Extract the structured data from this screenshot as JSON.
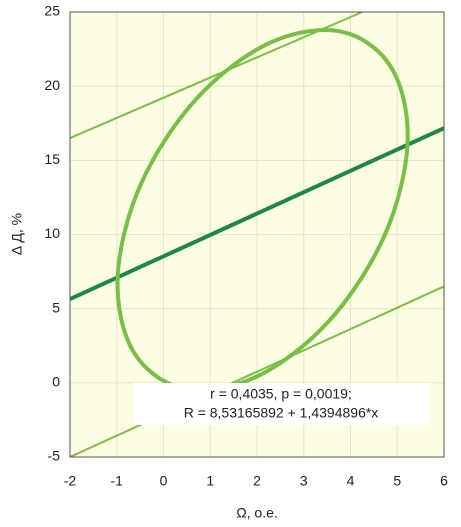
{
  "chart_data": {
    "type": "line",
    "xlabel": "Ω, о.е.",
    "ylabel": "Δ Д, %",
    "xlim": [
      -2,
      6
    ],
    "xticks": [
      -2,
      -1,
      0,
      1,
      2,
      3,
      4,
      5,
      6
    ],
    "ylim": [
      -5,
      25
    ],
    "yticks": [
      -5,
      0,
      5,
      10,
      15,
      20,
      25
    ],
    "grid": true,
    "series": [
      {
        "color": "#76c043",
        "width": 2,
        "x": [
          -2,
          4.25
        ],
        "values": [
          16.5,
          25
        ]
      },
      {
        "color": "#1b8a3c",
        "width": 4,
        "x": [
          -2,
          6
        ],
        "values": [
          5.65,
          17.17
        ]
      },
      {
        "color": "#76c043",
        "width": 2,
        "x": [
          -2,
          6
        ],
        "values": [
          -5,
          6.5
        ]
      },
      {
        "color": "#76c043",
        "width": 4,
        "closed": true,
        "x": [
          5.22,
          4.885,
          3.81,
          2.28,
          0.71,
          -0.485,
          -0.98,
          -0.645,
          0.43,
          1.96,
          3.53,
          4.725
        ],
        "values": [
          16.15,
          21.19,
          23.67,
          22.93,
          19.17,
          13.39,
          7.15,
          2.11,
          -0.37,
          0.37,
          4.13,
          9.91
        ]
      }
    ],
    "annotation": [
      "r = 0,4035, p = 0,0019;",
      "R = 8,53165892 + 1,4394896*x"
    ]
  }
}
